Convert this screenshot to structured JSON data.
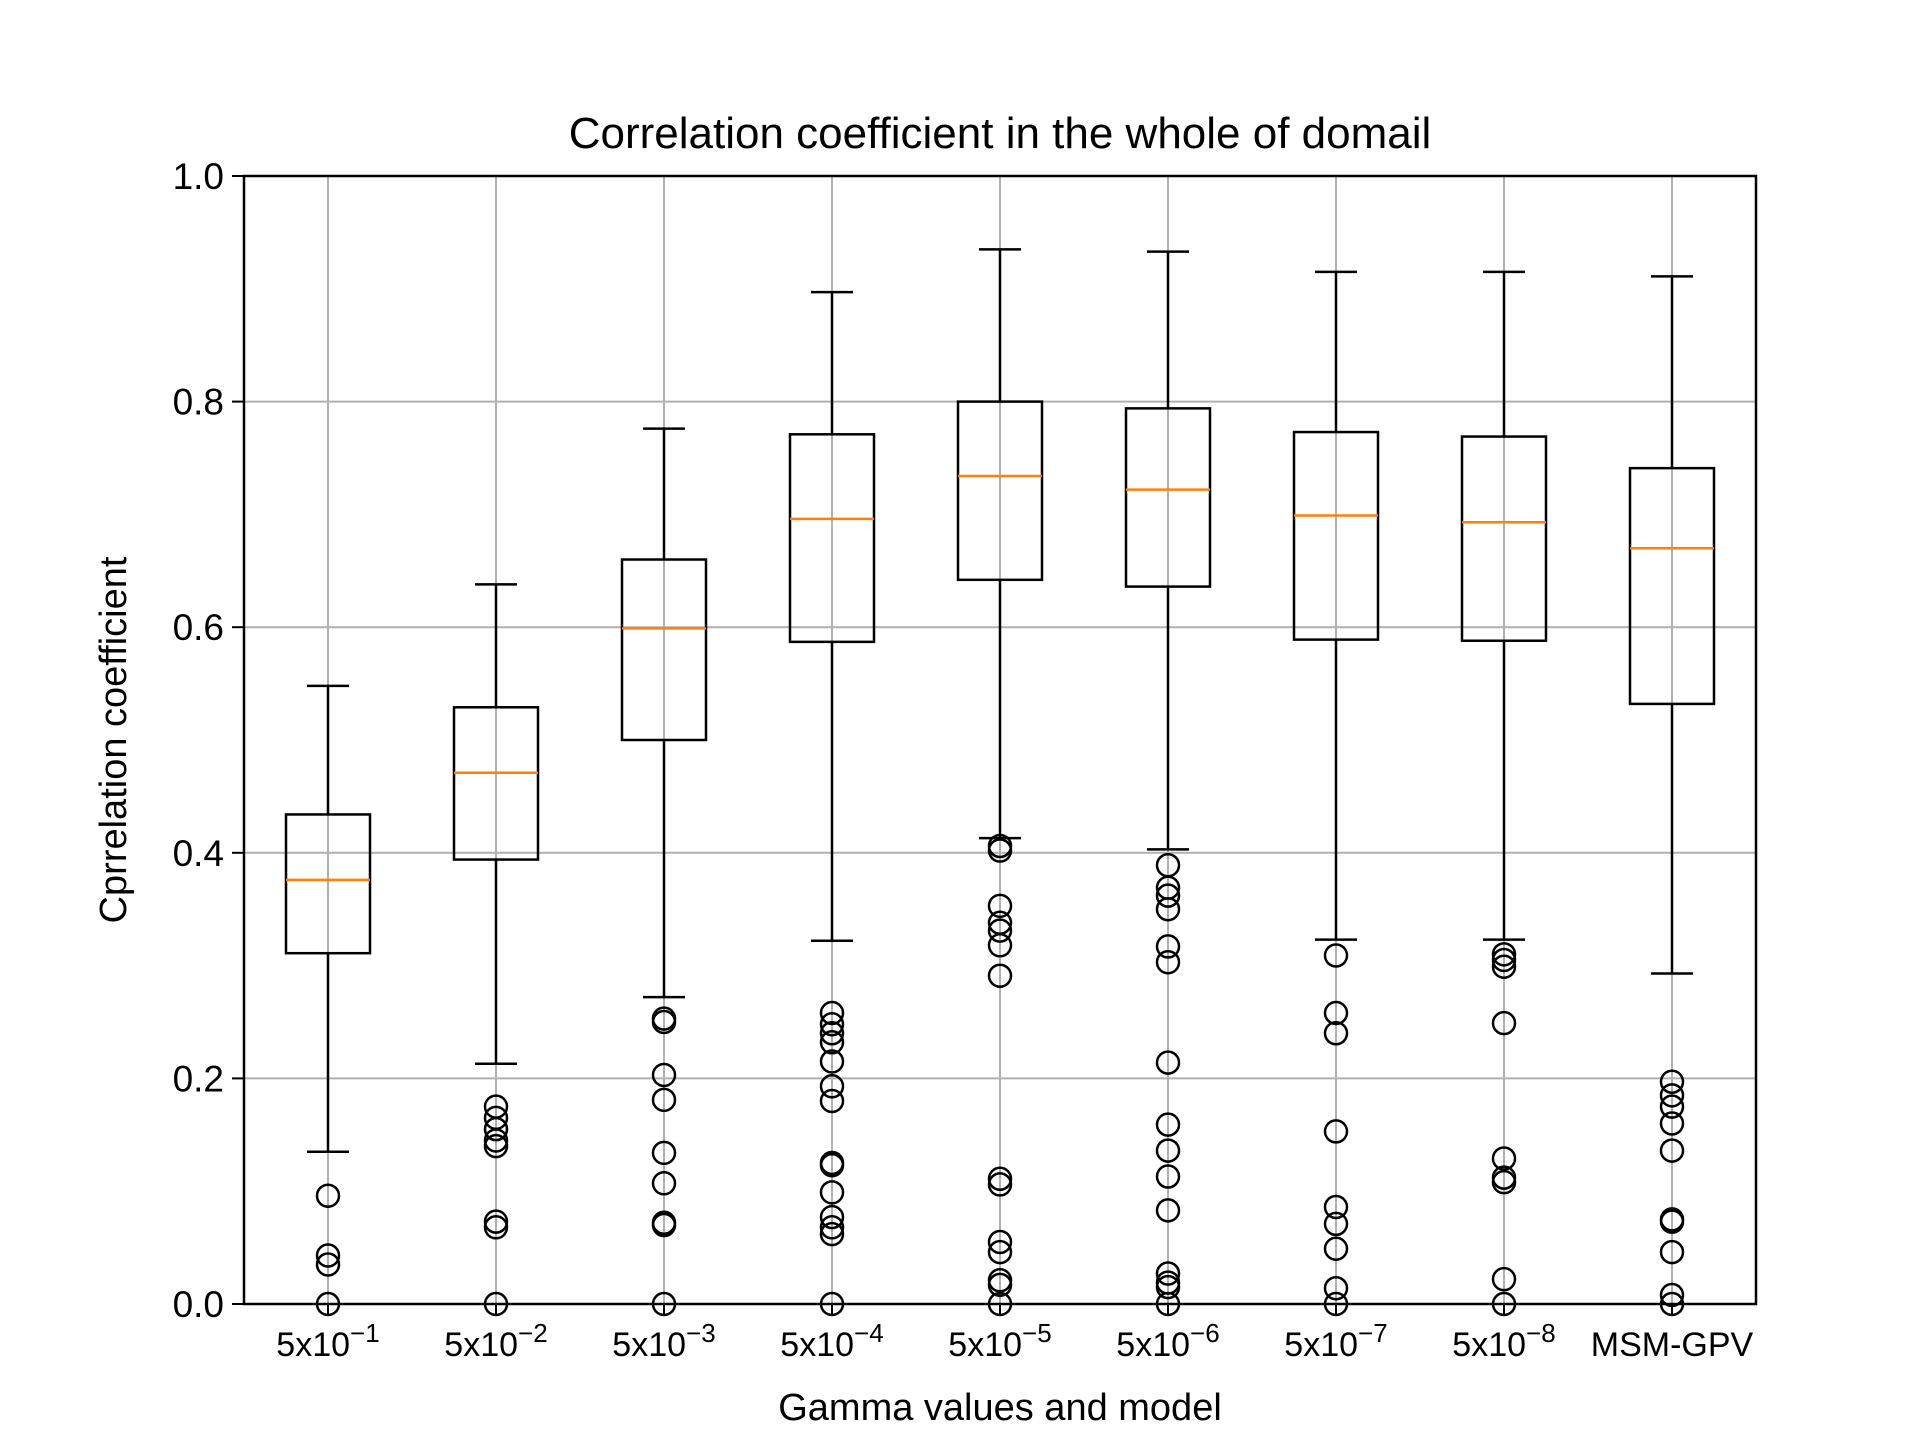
{
  "chart_data": {
    "type": "boxplot",
    "title": "Correlation coefficient in the whole of domail",
    "xlabel": "Gamma values and model",
    "ylabel": "Cprrelation coefficient",
    "ylim": [
      0.0,
      1.0
    ],
    "yticks": [
      "0.0",
      "0.2",
      "0.4",
      "0.6",
      "0.8",
      "1.0"
    ],
    "grid": true,
    "colors": {
      "box": "#000000",
      "median": "#ff7f0e",
      "grid": "#b0b0b0"
    },
    "categories": [
      {
        "base": "5x10",
        "exp": "−1",
        "label": "5x10^-1"
      },
      {
        "base": "5x10",
        "exp": "−2",
        "label": "5x10^-2"
      },
      {
        "base": "5x10",
        "exp": "−3",
        "label": "5x10^-3"
      },
      {
        "base": "5x10",
        "exp": "−4",
        "label": "5x10^-4"
      },
      {
        "base": "5x10",
        "exp": "−5",
        "label": "5x10^-5"
      },
      {
        "base": "5x10",
        "exp": "−6",
        "label": "5x10^-6"
      },
      {
        "base": "5x10",
        "exp": "−7",
        "label": "5x10^-7"
      },
      {
        "base": "5x10",
        "exp": "−8",
        "label": "5x10^-8"
      },
      {
        "base": "MSM-GPV",
        "exp": "",
        "label": "MSM-GPV"
      }
    ],
    "boxes": [
      {
        "whisker_low": 0.135,
        "q1": 0.311,
        "median": 0.376,
        "q3": 0.434,
        "whisker_high": 0.548,
        "outliers": [
          0.096,
          0.043,
          0.035,
          0.0
        ]
      },
      {
        "whisker_low": 0.213,
        "q1": 0.394,
        "median": 0.471,
        "q3": 0.529,
        "whisker_high": 0.638,
        "outliers": [
          0.175,
          0.165,
          0.155,
          0.145,
          0.14,
          0.073,
          0.068,
          0.0
        ]
      },
      {
        "whisker_low": 0.272,
        "q1": 0.5,
        "median": 0.599,
        "q3": 0.66,
        "whisker_high": 0.776,
        "outliers": [
          0.253,
          0.25,
          0.203,
          0.181,
          0.134,
          0.107,
          0.072,
          0.07,
          0.0
        ]
      },
      {
        "whisker_low": 0.322,
        "q1": 0.587,
        "median": 0.696,
        "q3": 0.771,
        "whisker_high": 0.897,
        "outliers": [
          0.258,
          0.248,
          0.24,
          0.232,
          0.215,
          0.193,
          0.18,
          0.125,
          0.123,
          0.099,
          0.077,
          0.068,
          0.062,
          0.0
        ]
      },
      {
        "whisker_low": 0.413,
        "q1": 0.642,
        "median": 0.734,
        "q3": 0.8,
        "whisker_high": 0.935,
        "outliers": [
          0.406,
          0.402,
          0.353,
          0.338,
          0.331,
          0.318,
          0.291,
          0.111,
          0.106,
          0.055,
          0.046,
          0.021,
          0.017,
          0.0
        ]
      },
      {
        "whisker_low": 0.403,
        "q1": 0.636,
        "median": 0.722,
        "q3": 0.794,
        "whisker_high": 0.933,
        "outliers": [
          0.389,
          0.369,
          0.362,
          0.35,
          0.317,
          0.303,
          0.214,
          0.159,
          0.136,
          0.113,
          0.083,
          0.027,
          0.019,
          0.015,
          0.0
        ]
      },
      {
        "whisker_low": 0.323,
        "q1": 0.589,
        "median": 0.699,
        "q3": 0.773,
        "whisker_high": 0.915,
        "outliers": [
          0.309,
          0.258,
          0.24,
          0.153,
          0.086,
          0.071,
          0.049,
          0.014,
          0.0
        ]
      },
      {
        "whisker_low": 0.323,
        "q1": 0.588,
        "median": 0.693,
        "q3": 0.769,
        "whisker_high": 0.915,
        "outliers": [
          0.31,
          0.305,
          0.299,
          0.249,
          0.129,
          0.112,
          0.108,
          0.022,
          0.0
        ]
      },
      {
        "whisker_low": 0.293,
        "q1": 0.532,
        "median": 0.67,
        "q3": 0.741,
        "whisker_high": 0.911,
        "outliers": [
          0.197,
          0.185,
          0.175,
          0.16,
          0.136,
          0.075,
          0.073,
          0.046,
          0.008,
          0.0
        ]
      }
    ]
  }
}
